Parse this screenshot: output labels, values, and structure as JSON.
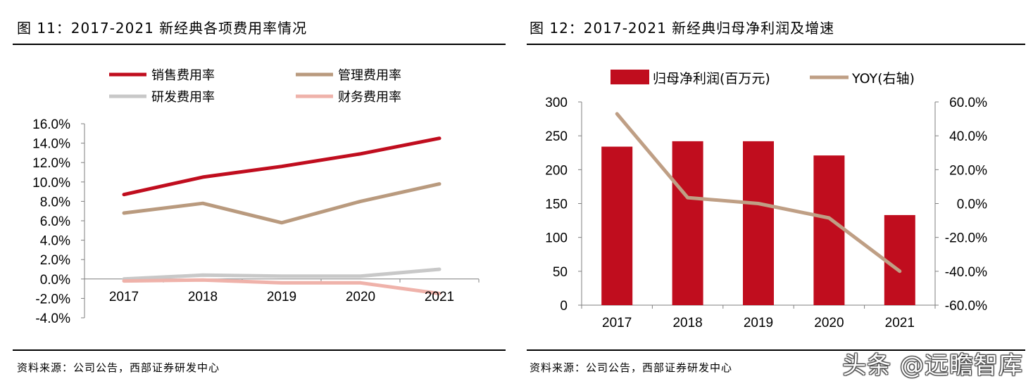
{
  "left": {
    "title": "图 11：2017-2021 新经典各项费用率情况",
    "source": "资料来源：公司公告，西部证券研发中心"
  },
  "right": {
    "title": "图 12：2017-2021 新经典归母净利润及增速",
    "source": "资料来源：公司公告，西部证券研发中心"
  },
  "watermark": "头条 @远瞻智库",
  "chart_data": [
    {
      "type": "line",
      "title": "2017-2021 新经典各项费用率情况",
      "categories": [
        "2017",
        "2018",
        "2019",
        "2020",
        "2021"
      ],
      "y_ticks": [
        "16.0%",
        "14.0%",
        "12.0%",
        "10.0%",
        "8.0%",
        "6.0%",
        "4.0%",
        "2.0%",
        "0.0%",
        "-2.0%",
        "-4.0%"
      ],
      "ylim": [
        -4,
        16
      ],
      "legend_position": "top",
      "series": [
        {
          "name": "销售费用率",
          "color": "#c00d1e",
          "values": [
            8.7,
            10.5,
            11.6,
            12.9,
            14.5
          ]
        },
        {
          "name": "管理费用率",
          "color": "#b99a7e",
          "values": [
            6.8,
            7.8,
            5.8,
            8.0,
            9.8
          ]
        },
        {
          "name": "研发费用率",
          "color": "#c8c8c8",
          "values": [
            0.0,
            0.4,
            0.3,
            0.3,
            1.0
          ]
        },
        {
          "name": "财务费用率",
          "color": "#efb2aa",
          "values": [
            -0.2,
            -0.1,
            -0.4,
            -0.4,
            -1.5
          ]
        }
      ]
    },
    {
      "type": "bar",
      "title": "2017-2021 新经典归母净利润及增速",
      "categories": [
        "2017",
        "2018",
        "2019",
        "2020",
        "2021"
      ],
      "legend_position": "top",
      "y_left_ticks": [
        "300",
        "250",
        "200",
        "150",
        "100",
        "50",
        "0"
      ],
      "y_right_ticks": [
        "60.0%",
        "40.0%",
        "20.0%",
        "0.0%",
        "-20.0%",
        "-40.0%",
        "-60.0%"
      ],
      "ylim": [
        0,
        300
      ],
      "y2lim": [
        -60,
        60
      ],
      "series": [
        {
          "name": "归母净利润(百万元)",
          "color": "#c00d1e",
          "axis": "left",
          "type": "bar",
          "values": [
            234,
            242,
            242,
            221,
            133
          ]
        },
        {
          "name": "YOY(右轴)",
          "color": "#bf9f85",
          "axis": "right",
          "type": "line",
          "values": [
            53.0,
            3.5,
            0.0,
            -8.5,
            -40.0
          ]
        }
      ]
    }
  ]
}
